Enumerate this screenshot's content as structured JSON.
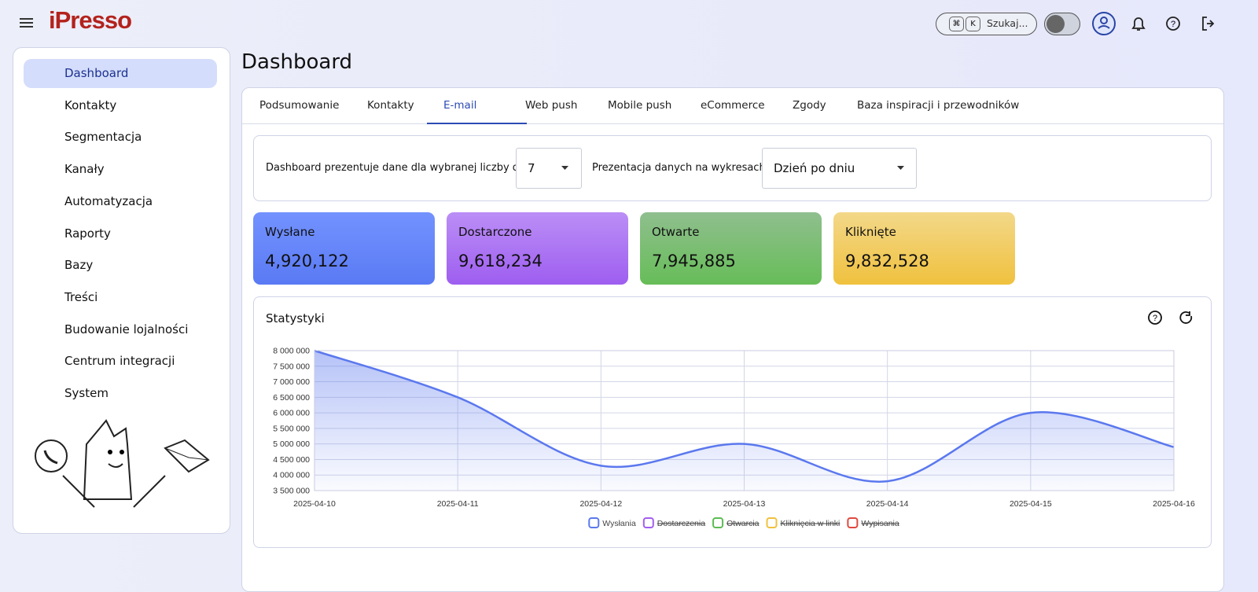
{
  "header": {
    "logo": "iPresso",
    "search_keys": [
      "⌘",
      "K"
    ],
    "search": "Szukaj..."
  },
  "sidebar": {
    "active": 0,
    "items": [
      {
        "label": "Dashboard",
        "submenu": false
      },
      {
        "label": "Kontakty",
        "submenu": true
      },
      {
        "label": "Segmentacja",
        "submenu": false
      },
      {
        "label": "Kanały",
        "submenu": true
      },
      {
        "label": "Automatyzacja",
        "submenu": true
      },
      {
        "label": "Raporty",
        "submenu": true
      },
      {
        "label": "Bazy",
        "submenu": true
      },
      {
        "label": "Treści",
        "submenu": true
      },
      {
        "label": "Budowanie lojalności",
        "submenu": true
      },
      {
        "label": "Centrum integracji",
        "submenu": false
      },
      {
        "label": "System",
        "submenu": true
      }
    ]
  },
  "page_title": "Dashboard",
  "tabs": {
    "active": 2,
    "items": [
      "Podsumowanie",
      "Kontakty",
      "E-mail",
      "Web push",
      "Mobile push",
      "eCommerce",
      "Zgody",
      "Baza inspiracji i przewodników"
    ]
  },
  "filters": {
    "days_label": "Dashboard prezentuje dane dla wybranej liczby dni",
    "days_value": "7",
    "presentation_label": "Prezentacja danych na wykresach",
    "presentation_value": "Dzień po dniu"
  },
  "cards": [
    {
      "label": "Wysłane",
      "value": "4,920,122",
      "colors": [
        "#7392ff",
        "#5a7af4"
      ]
    },
    {
      "label": "Dostarczone",
      "value": "9,618,234",
      "colors": [
        "#bb8ef6",
        "#9e5ef0"
      ]
    },
    {
      "label": "Otwarte",
      "value": "7,945,885",
      "colors": [
        "#8fbf8e",
        "#67bd58"
      ]
    },
    {
      "label": "Kliknięte",
      "value": "9,832,528",
      "colors": [
        "#f3d889",
        "#f0c13e"
      ]
    }
  ],
  "chart_data": {
    "type": "line",
    "title": "Statystyki",
    "x": [
      "2025-04-10",
      "2025-04-11",
      "2025-04-12",
      "2025-04-13",
      "2025-04-14",
      "2025-04-15",
      "2025-04-16"
    ],
    "series": [
      {
        "name": "Wysłania",
        "color": "#5b78ee",
        "hidden": false,
        "values": [
          8000000,
          6500000,
          4300000,
          5000000,
          3800000,
          6000000,
          4900000
        ]
      },
      {
        "name": "Dostarczenia",
        "color": "#a25ef0",
        "hidden": true,
        "values": [
          null,
          null,
          null,
          null,
          null,
          null,
          null
        ]
      },
      {
        "name": "Otwarcia",
        "color": "#5cbc52",
        "hidden": true,
        "values": [
          null,
          null,
          null,
          null,
          null,
          null,
          null
        ]
      },
      {
        "name": "Kliknięcia w linki",
        "color": "#f0c13e",
        "hidden": true,
        "values": [
          null,
          null,
          null,
          null,
          null,
          null,
          null
        ]
      },
      {
        "name": "Wypisania",
        "color": "#e0483e",
        "hidden": true,
        "values": [
          null,
          null,
          null,
          null,
          null,
          null,
          null
        ]
      }
    ],
    "ylim": [
      3500000,
      8000000
    ],
    "yticks": [
      {
        "value": 3500000,
        "label": "3 500 000"
      },
      {
        "value": 4000000,
        "label": "4 000 000"
      },
      {
        "value": 4500000,
        "label": "4 500 000"
      },
      {
        "value": 5000000,
        "label": "5 000 000"
      },
      {
        "value": 5500000,
        "label": "5 500 000"
      },
      {
        "value": 6000000,
        "label": "6 000 000"
      },
      {
        "value": 6500000,
        "label": "6 500 000"
      },
      {
        "value": 7000000,
        "label": "7 000 000"
      },
      {
        "value": 7500000,
        "label": "7 500 000"
      },
      {
        "value": 8000000,
        "label": "8 000 000"
      }
    ],
    "grid": true,
    "fill": true
  }
}
